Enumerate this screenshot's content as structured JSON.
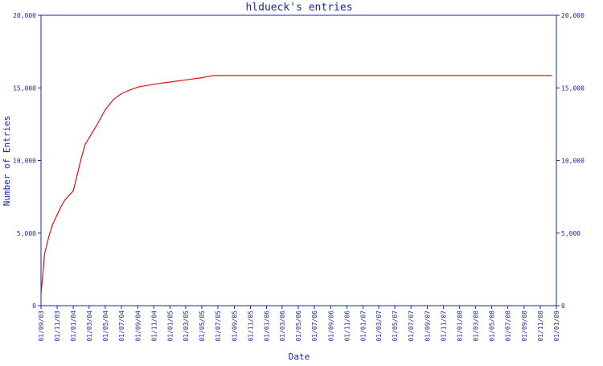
{
  "chart_data": {
    "type": "line",
    "title": "hldueck's entries",
    "xlabel": "Date",
    "ylabel": "Number of Entries",
    "ylim": [
      0,
      20000
    ],
    "yticks": [
      0,
      5000,
      10000,
      15000,
      20000
    ],
    "ytick_labels": [
      "0",
      "5,000",
      "10,000",
      "15,000",
      "20,000"
    ],
    "x_tick_labels": [
      "01/09/03",
      "01/11/03",
      "01/01/04",
      "01/03/04",
      "01/05/04",
      "01/07/04",
      "01/09/04",
      "01/11/04",
      "01/01/05",
      "01/03/05",
      "01/05/05",
      "01/07/05",
      "01/09/05",
      "01/11/05",
      "01/01/06",
      "01/03/06",
      "01/05/06",
      "01/07/06",
      "01/09/06",
      "01/11/06",
      "01/01/07",
      "01/03/07",
      "01/05/07",
      "01/07/07",
      "01/09/07",
      "01/11/07",
      "01/01/08",
      "01/03/08",
      "01/05/08",
      "01/07/08",
      "01/09/08",
      "01/11/08",
      "01/01/09"
    ],
    "series": [
      {
        "color": "#e01010",
        "points": [
          [
            "01/09/03",
            800
          ],
          [
            "15/09/03",
            3600
          ],
          [
            "01/10/03",
            4800
          ],
          [
            "15/10/03",
            5600
          ],
          [
            "15/11/03",
            6800
          ],
          [
            "01/12/03",
            7300
          ],
          [
            "01/01/04",
            7900
          ],
          [
            "01/02/04",
            10200
          ],
          [
            "15/02/04",
            11100
          ],
          [
            "01/04/04",
            12500
          ],
          [
            "01/05/04",
            13500
          ],
          [
            "01/06/04",
            14200
          ],
          [
            "01/07/04",
            14600
          ],
          [
            "01/08/04",
            14850
          ],
          [
            "01/09/04",
            15050
          ],
          [
            "01/11/04",
            15250
          ],
          [
            "01/01/05",
            15400
          ],
          [
            "01/03/05",
            15550
          ],
          [
            "01/05/05",
            15700
          ],
          [
            "15/06/05",
            15850
          ],
          [
            "01/01/06",
            15850
          ],
          [
            "01/01/07",
            15850
          ],
          [
            "01/01/08",
            15850
          ],
          [
            "15/12/08",
            15850
          ]
        ]
      }
    ]
  }
}
